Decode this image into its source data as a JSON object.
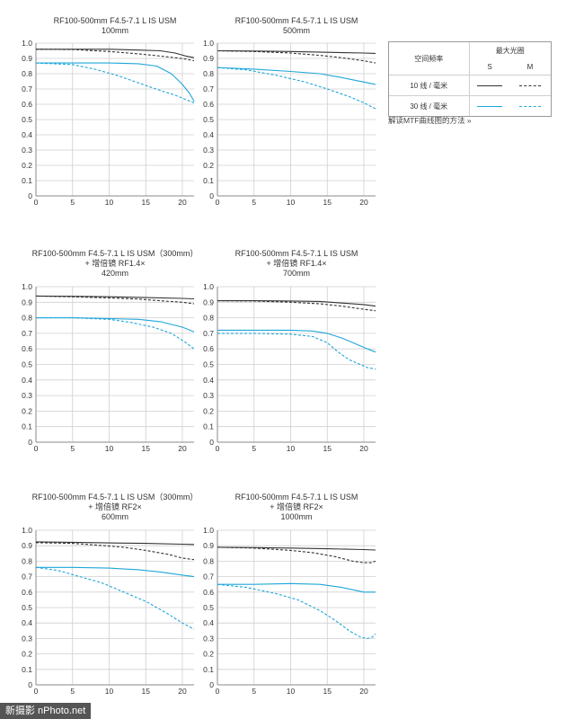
{
  "colors": {
    "line_10": "#333333",
    "line_30": "#1ea6d9",
    "grid": "#cfcfcf",
    "axis": "#888888"
  },
  "legend": {
    "header_freq": "空间频率",
    "header_aperture": "最大光圈",
    "col_s": "S",
    "col_m": "M",
    "row_10": "10 线 / 毫米",
    "row_30": "30 线 / 毫米"
  },
  "mtf_link": "解读MTF曲线图的方法 »",
  "watermark": "新摄影 nPhoto.net",
  "chart_data": [
    {
      "type": "line",
      "title_lines": [
        "RF100-500mm F4.5-7.1 L IS USM",
        "100mm"
      ],
      "x_ticks": [
        0,
        5,
        10,
        15,
        20
      ],
      "y_ticks": [
        0,
        0.1,
        0.2,
        0.3,
        0.4,
        0.5,
        0.6,
        0.7,
        0.8,
        0.9,
        1.0
      ],
      "xlim": [
        0,
        21.6
      ],
      "ylim": [
        0,
        1.0
      ],
      "series": [
        {
          "name": "10 线 / 毫米 S",
          "x": [
            0,
            5,
            10,
            14,
            17,
            19,
            20.5,
            21.6
          ],
          "y": [
            0.96,
            0.96,
            0.96,
            0.955,
            0.95,
            0.935,
            0.915,
            0.905
          ]
        },
        {
          "name": "10 线 / 毫米 M",
          "x": [
            0,
            5,
            10,
            14,
            17,
            19,
            20.5,
            21.6
          ],
          "y": [
            0.96,
            0.958,
            0.945,
            0.93,
            0.915,
            0.905,
            0.895,
            0.885
          ]
        },
        {
          "name": "30 线 / 毫米 S",
          "x": [
            0,
            5,
            10,
            14,
            16.5,
            18.5,
            20,
            21,
            21.6
          ],
          "y": [
            0.87,
            0.87,
            0.87,
            0.865,
            0.85,
            0.8,
            0.73,
            0.67,
            0.62
          ]
        },
        {
          "name": "30 线 / 毫米 M",
          "x": [
            0,
            5,
            8,
            11,
            14,
            17,
            19,
            20.5,
            21.6
          ],
          "y": [
            0.87,
            0.86,
            0.83,
            0.79,
            0.74,
            0.69,
            0.66,
            0.63,
            0.61
          ]
        }
      ]
    },
    {
      "type": "line",
      "title_lines": [
        "RF100-500mm F4.5-7.1 L IS USM",
        "500mm"
      ],
      "x_ticks": [
        0,
        5,
        10,
        15,
        20
      ],
      "y_ticks": [
        0,
        0.1,
        0.2,
        0.3,
        0.4,
        0.5,
        0.6,
        0.7,
        0.8,
        0.9,
        1.0
      ],
      "xlim": [
        0,
        21.6
      ],
      "ylim": [
        0,
        1.0
      ],
      "series": [
        {
          "name": "10 线 / 毫米 S",
          "x": [
            0,
            5,
            10,
            15,
            20,
            21.6
          ],
          "y": [
            0.95,
            0.948,
            0.945,
            0.94,
            0.935,
            0.933
          ]
        },
        {
          "name": "10 线 / 毫米 M",
          "x": [
            0,
            5,
            10,
            14,
            17,
            20,
            21.6
          ],
          "y": [
            0.95,
            0.945,
            0.935,
            0.92,
            0.905,
            0.885,
            0.87
          ]
        },
        {
          "name": "30 线 / 毫米 S",
          "x": [
            0,
            5,
            10,
            14,
            17,
            20,
            21.6
          ],
          "y": [
            0.84,
            0.83,
            0.815,
            0.8,
            0.775,
            0.745,
            0.73
          ]
        },
        {
          "name": "30 线 / 毫米 M",
          "x": [
            0,
            4,
            8,
            12,
            15,
            18,
            20,
            21.6
          ],
          "y": [
            0.84,
            0.825,
            0.79,
            0.745,
            0.7,
            0.65,
            0.61,
            0.57
          ]
        }
      ]
    },
    {
      "type": "line",
      "title_lines": [
        "RF100-500mm F4.5-7.1 L IS USM（300mm）",
        "+ 增倍镜 RF1.4×",
        "420mm"
      ],
      "x_ticks": [
        0,
        5,
        10,
        15,
        20
      ],
      "y_ticks": [
        0,
        0.1,
        0.2,
        0.3,
        0.4,
        0.5,
        0.6,
        0.7,
        0.8,
        0.9,
        1.0
      ],
      "xlim": [
        0,
        21.6
      ],
      "ylim": [
        0,
        1.0
      ],
      "series": [
        {
          "name": "10 线 / 毫米 S",
          "x": [
            0,
            5,
            10,
            15,
            20,
            21.6
          ],
          "y": [
            0.94,
            0.938,
            0.935,
            0.93,
            0.925,
            0.922
          ]
        },
        {
          "name": "10 线 / 毫米 M",
          "x": [
            0,
            5,
            10,
            14,
            17,
            20,
            21.6
          ],
          "y": [
            0.94,
            0.935,
            0.928,
            0.92,
            0.91,
            0.9,
            0.89
          ]
        },
        {
          "name": "30 线 / 毫米 S",
          "x": [
            0,
            5,
            10,
            14,
            17,
            20,
            21.6
          ],
          "y": [
            0.8,
            0.8,
            0.795,
            0.79,
            0.775,
            0.74,
            0.71
          ]
        },
        {
          "name": "30 线 / 毫米 M",
          "x": [
            0,
            5,
            10,
            13,
            16,
            18.5,
            20.5,
            21.6
          ],
          "y": [
            0.8,
            0.8,
            0.79,
            0.77,
            0.74,
            0.7,
            0.64,
            0.6
          ]
        }
      ]
    },
    {
      "type": "line",
      "title_lines": [
        "RF100-500mm F4.5-7.1 L IS USM",
        "+ 增倍镜 RF1.4×",
        "700mm"
      ],
      "x_ticks": [
        0,
        5,
        10,
        15,
        20
      ],
      "y_ticks": [
        0,
        0.1,
        0.2,
        0.3,
        0.4,
        0.5,
        0.6,
        0.7,
        0.8,
        0.9,
        1.0
      ],
      "xlim": [
        0,
        21.6
      ],
      "ylim": [
        0,
        1.0
      ],
      "series": [
        {
          "name": "10 线 / 毫米 S",
          "x": [
            0,
            5,
            10,
            14,
            17,
            20,
            21.6
          ],
          "y": [
            0.91,
            0.91,
            0.908,
            0.905,
            0.895,
            0.885,
            0.875
          ]
        },
        {
          "name": "10 线 / 毫米 M",
          "x": [
            0,
            5,
            10,
            14,
            17,
            20,
            21.6
          ],
          "y": [
            0.91,
            0.908,
            0.9,
            0.89,
            0.875,
            0.855,
            0.845
          ]
        },
        {
          "name": "30 线 / 毫米 S",
          "x": [
            0,
            5,
            10,
            13,
            15,
            17,
            19,
            20.5,
            21.6
          ],
          "y": [
            0.72,
            0.72,
            0.72,
            0.715,
            0.7,
            0.67,
            0.63,
            0.6,
            0.58
          ]
        },
        {
          "name": "30 线 / 毫米 M",
          "x": [
            0,
            5,
            10,
            13,
            15,
            16.5,
            18,
            19.5,
            20.5,
            21.6
          ],
          "y": [
            0.7,
            0.7,
            0.695,
            0.68,
            0.64,
            0.58,
            0.53,
            0.5,
            0.48,
            0.47
          ]
        }
      ]
    },
    {
      "type": "line",
      "title_lines": [
        "RF100-500mm F4.5-7.1 L IS USM（300mm）",
        "+ 增倍镜 RF2×",
        "600mm"
      ],
      "x_ticks": [
        0,
        5,
        10,
        15,
        20
      ],
      "y_ticks": [
        0,
        0.1,
        0.2,
        0.3,
        0.4,
        0.5,
        0.6,
        0.7,
        0.8,
        0.9,
        1.0
      ],
      "xlim": [
        0,
        21.6
      ],
      "ylim": [
        0,
        1.0
      ],
      "series": [
        {
          "name": "10 线 / 毫米 S",
          "x": [
            0,
            5,
            10,
            15,
            20,
            21.6
          ],
          "y": [
            0.925,
            0.922,
            0.918,
            0.915,
            0.91,
            0.908
          ]
        },
        {
          "name": "10 线 / 毫米 M",
          "x": [
            0,
            5,
            8,
            12,
            15,
            18,
            20,
            21.6
          ],
          "y": [
            0.92,
            0.915,
            0.905,
            0.89,
            0.87,
            0.845,
            0.82,
            0.81
          ]
        },
        {
          "name": "30 线 / 毫米 S",
          "x": [
            0,
            5,
            10,
            14,
            17,
            20,
            21.6
          ],
          "y": [
            0.76,
            0.76,
            0.755,
            0.745,
            0.73,
            0.71,
            0.7
          ]
        },
        {
          "name": "30 线 / 毫米 M",
          "x": [
            0,
            3,
            6,
            9,
            12,
            15,
            18,
            20,
            21.6
          ],
          "y": [
            0.76,
            0.74,
            0.7,
            0.66,
            0.6,
            0.54,
            0.46,
            0.4,
            0.36
          ]
        }
      ]
    },
    {
      "type": "line",
      "title_lines": [
        "RF100-500mm F4.5-7.1 L IS USM",
        "+ 增倍镜 RF2×",
        "1000mm"
      ],
      "x_ticks": [
        0,
        5,
        10,
        15,
        20
      ],
      "y_ticks": [
        0,
        0.1,
        0.2,
        0.3,
        0.4,
        0.5,
        0.6,
        0.7,
        0.8,
        0.9,
        1.0
      ],
      "xlim": [
        0,
        21.6
      ],
      "ylim": [
        0,
        1.0
      ],
      "series": [
        {
          "name": "10 线 / 毫米 S",
          "x": [
            0,
            5,
            10,
            15,
            20,
            21.6
          ],
          "y": [
            0.89,
            0.888,
            0.885,
            0.88,
            0.875,
            0.872
          ]
        },
        {
          "name": "10 线 / 毫米 M",
          "x": [
            0,
            5,
            10,
            13,
            16,
            18.5,
            20,
            21,
            21.6
          ],
          "y": [
            0.89,
            0.885,
            0.87,
            0.855,
            0.83,
            0.8,
            0.79,
            0.79,
            0.8
          ]
        },
        {
          "name": "30 线 / 毫米 S",
          "x": [
            0,
            5,
            10,
            14,
            17,
            20,
            21.6
          ],
          "y": [
            0.65,
            0.65,
            0.655,
            0.65,
            0.63,
            0.6,
            0.6
          ]
        },
        {
          "name": "30 线 / 毫米 M",
          "x": [
            0,
            4,
            8,
            11,
            14,
            16,
            18,
            19.5,
            20.5,
            21.2,
            21.6
          ],
          "y": [
            0.65,
            0.63,
            0.59,
            0.55,
            0.48,
            0.42,
            0.35,
            0.31,
            0.3,
            0.31,
            0.33
          ]
        }
      ]
    }
  ]
}
